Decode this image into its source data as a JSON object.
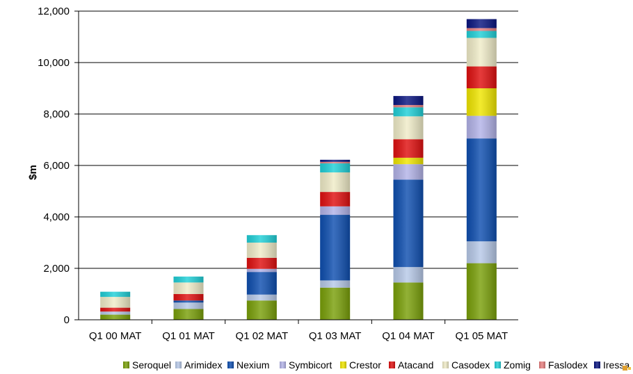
{
  "chart_data": {
    "type": "bar",
    "stacked": true,
    "title": "",
    "xlabel": "",
    "ylabel": "$m",
    "ylim": [
      0,
      12000
    ],
    "yticks": [
      "0",
      "2,000",
      "4,000",
      "6,000",
      "8,000",
      "10,000",
      "12,000"
    ],
    "ytick_values": [
      0,
      2000,
      4000,
      6000,
      8000,
      10000,
      12000
    ],
    "grid": true,
    "legend_position": "bottom",
    "categories": [
      "Q1 00 MAT",
      "Q1 01 MAT",
      "Q1 02 MAT",
      "Q1 03 MAT",
      "Q1 04 MAT",
      "Q1 05 MAT"
    ],
    "series": [
      {
        "name": "Seroquel",
        "color": "#7aa00a",
        "values": [
          200,
          420,
          750,
          1250,
          1450,
          2200
        ]
      },
      {
        "name": "Arimidex",
        "color": "#b7c9e8",
        "values": [
          120,
          250,
          230,
          280,
          600,
          850
        ]
      },
      {
        "name": "Nexium",
        "color": "#0f4fb0",
        "values": [
          0,
          80,
          880,
          2550,
          3400,
          4000
        ]
      },
      {
        "name": "Symbicort",
        "color": "#b3b3e8",
        "values": [
          0,
          0,
          120,
          330,
          600,
          880
        ]
      },
      {
        "name": "Crestor",
        "color": "#f0e600",
        "values": [
          0,
          0,
          0,
          0,
          250,
          1070
        ]
      },
      {
        "name": "Atacand",
        "color": "#e01010",
        "values": [
          150,
          250,
          430,
          560,
          720,
          850
        ]
      },
      {
        "name": "Casodex",
        "color": "#f0ecc8",
        "values": [
          420,
          450,
          590,
          760,
          890,
          1110
        ]
      },
      {
        "name": "Zomig",
        "color": "#20d0d8",
        "values": [
          200,
          230,
          290,
          350,
          350,
          270
        ]
      },
      {
        "name": "Faslodex",
        "color": "#e88080",
        "values": [
          0,
          0,
          0,
          60,
          90,
          110
        ]
      },
      {
        "name": "Iressa",
        "color": "#0a1580",
        "values": [
          0,
          0,
          0,
          80,
          350,
          350
        ]
      }
    ]
  }
}
